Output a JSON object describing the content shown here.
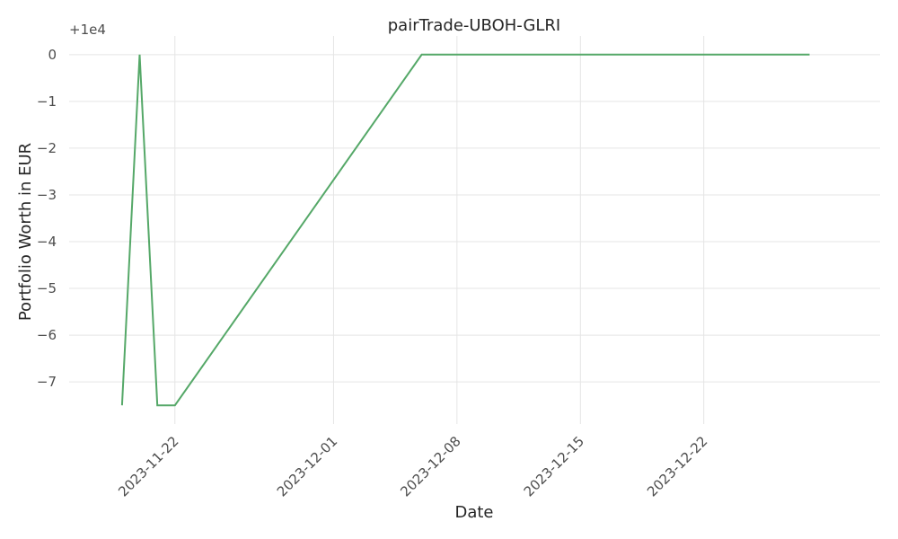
{
  "chart_data": {
    "type": "line",
    "title": "pairTrade-UBOH-GLRI",
    "xlabel": "Date",
    "ylabel": "Portfolio Worth in EUR",
    "y_offset_label": "+1e4",
    "x_ticks": [
      "2023-11-22",
      "2023-12-01",
      "2023-12-08",
      "2023-12-15",
      "2023-12-22"
    ],
    "y_ticks": [
      0,
      -1,
      -2,
      -3,
      -4,
      -5,
      -6,
      -7
    ],
    "y_tick_labels": [
      "0",
      "−1",
      "−2",
      "−3",
      "−4",
      "−5",
      "−6",
      "−7"
    ],
    "xlim": [
      "2023-11-16",
      "2024-01-01"
    ],
    "ylim": [
      -7.9,
      0.4
    ],
    "grid": true,
    "series": [
      {
        "color": "#55a868",
        "x": [
          "2023-11-19",
          "2023-11-20",
          "2023-11-21",
          "2023-11-22",
          "2023-12-06",
          "2023-12-07",
          "2023-12-28"
        ],
        "y": [
          -7.5,
          0,
          -7.5,
          -7.5,
          0,
          0,
          0
        ]
      }
    ]
  }
}
